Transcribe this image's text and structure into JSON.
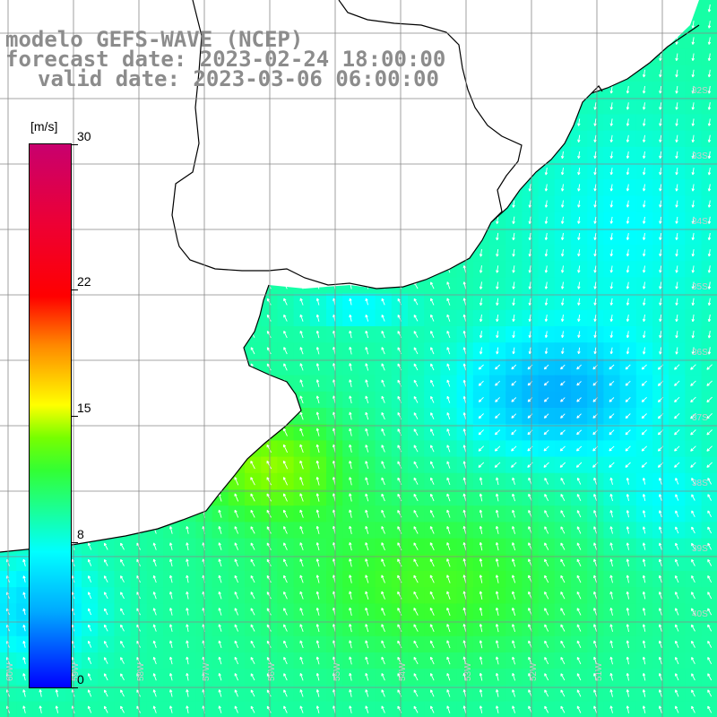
{
  "title": {
    "line1": "modelo GEFS-WAVE (NCEP)",
    "line2": "forecast date: 2023-02-24 18:00:00",
    "line3": "valid date: 2023-03-06 06:00:00"
  },
  "colorbar": {
    "unit": "[m/s]",
    "ticks": [
      {
        "label": "30",
        "value": 30
      },
      {
        "label": "22",
        "value": 22
      },
      {
        "label": "15",
        "value": 15
      },
      {
        "label": "8",
        "value": 8
      },
      {
        "label": "0",
        "value": 0
      }
    ],
    "range": [
      0,
      30
    ]
  },
  "map": {
    "lat_labels": [
      "32S",
      "33S",
      "34S",
      "35S",
      "36S",
      "37S",
      "38S",
      "39S",
      "40S"
    ],
    "lon_labels": [
      "60W",
      "59W",
      "58W",
      "57W",
      "56W",
      "55W",
      "54W",
      "53W",
      "52W",
      "51W"
    ],
    "colors": {
      "land": "#ffffff",
      "coast": "#000000",
      "grid": "#888888",
      "arrows": "#ffffff",
      "labels": "#cccccc"
    }
  }
}
